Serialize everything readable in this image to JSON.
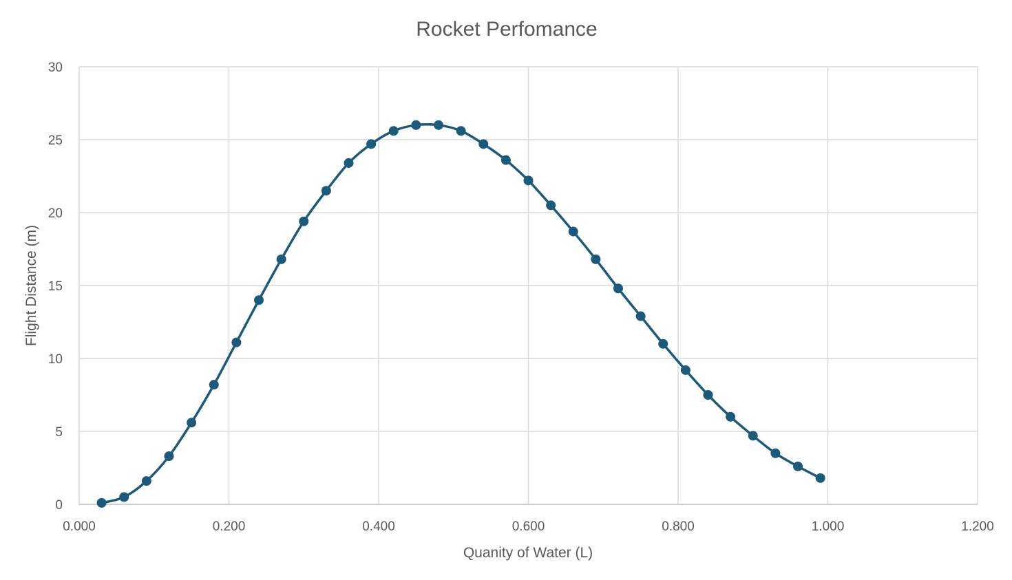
{
  "chart_data": {
    "type": "scatter",
    "title": "Rocket Perfomance",
    "xlabel": "Quanity of Water (L)",
    "ylabel": "Flight Distance (m)",
    "xlim": [
      0,
      1.2
    ],
    "ylim": [
      0,
      30
    ],
    "x_ticks": [
      "0.000",
      "0.200",
      "0.400",
      "0.600",
      "0.800",
      "1.000",
      "1.200"
    ],
    "y_ticks": [
      "0",
      "5",
      "10",
      "15",
      "20",
      "25",
      "30"
    ],
    "grid": true,
    "legend": "none",
    "series_color": "#1b5a7a",
    "series": [
      {
        "x": [
          0.03,
          0.06,
          0.09,
          0.12,
          0.15,
          0.18,
          0.21,
          0.24,
          0.27,
          0.3,
          0.33,
          0.36,
          0.39,
          0.42,
          0.45,
          0.48,
          0.51,
          0.54,
          0.57,
          0.6,
          0.63,
          0.66,
          0.69,
          0.72,
          0.75,
          0.78,
          0.81,
          0.84,
          0.87,
          0.9,
          0.93,
          0.96,
          0.99
        ],
        "y": [
          0.1,
          0.5,
          1.6,
          3.3,
          5.6,
          8.2,
          11.1,
          14.0,
          16.8,
          19.4,
          21.5,
          23.4,
          24.7,
          25.6,
          26.0,
          26.0,
          25.6,
          24.7,
          23.6,
          22.2,
          20.5,
          18.7,
          16.8,
          14.8,
          12.9,
          11.0,
          9.2,
          7.5,
          6.0,
          4.7,
          3.5,
          2.6,
          1.8
        ]
      }
    ]
  }
}
